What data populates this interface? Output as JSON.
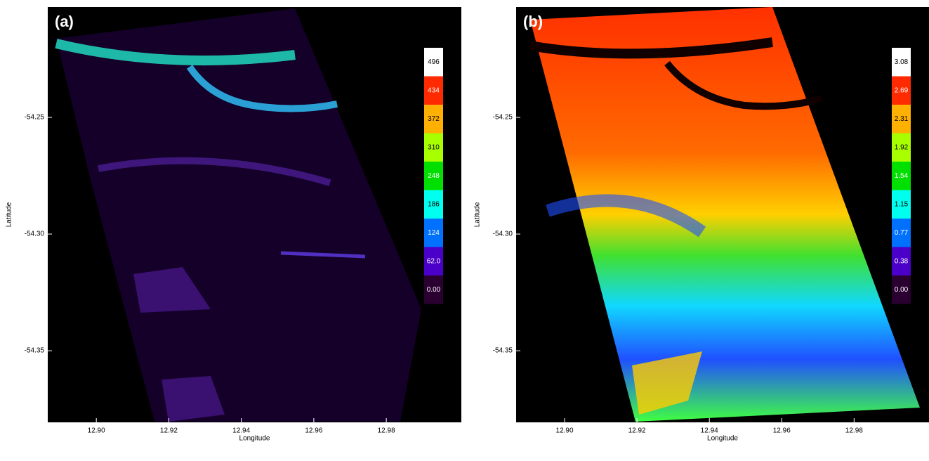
{
  "chart_data": [
    {
      "type": "heatmap",
      "panel_label": "(a)",
      "xlabel": "Longitude",
      "ylabel": "Latitude",
      "xlim": [
        12.8866,
        13.0007
      ],
      "ylim": [
        -54.3807,
        -54.2027
      ],
      "xticks": [
        {
          "value": 12.9,
          "label": "12.90"
        },
        12.92,
        12.94,
        12.96,
        12.98
      ],
      "yticks": [
        -54.35,
        {
          "value": -54.3,
          "label": "-54.30"
        },
        -54.25
      ],
      "colorbar": {
        "ticks": [
          496,
          434,
          372,
          310,
          248,
          186,
          124,
          {
            "value": 62,
            "label": "62.0"
          },
          {
            "value": 0,
            "label": "0.00"
          }
        ],
        "colors": [
          "#ffffff",
          "#ff2a00",
          "#ffb000",
          "#a8ff00",
          "#00e000",
          "#00ffee",
          "#0070ff",
          "#4a00c8",
          "#2a0030"
        ]
      }
    },
    {
      "type": "heatmap",
      "panel_label": "(b)",
      "xlabel": "Longitude",
      "ylabel": "Latitude",
      "xlim": [
        12.8866,
        13.0007
      ],
      "ylim": [
        -54.3807,
        -54.2027
      ],
      "xticks": [
        {
          "value": 12.9,
          "label": "12.90"
        },
        12.92,
        12.94,
        12.96,
        12.98
      ],
      "yticks": [
        -54.35,
        {
          "value": -54.3,
          "label": "-54.30"
        },
        -54.25
      ],
      "colorbar": {
        "ticks": [
          3.08,
          2.69,
          2.31,
          1.92,
          1.54,
          1.15,
          0.77,
          0.38,
          {
            "value": 0,
            "label": "0.00"
          }
        ],
        "colors": [
          "#ffffff",
          "#ff2a00",
          "#ffb000",
          "#a8ff00",
          "#00e000",
          "#00ffee",
          "#0070ff",
          "#4a00c8",
          "#2a0030"
        ]
      }
    }
  ]
}
